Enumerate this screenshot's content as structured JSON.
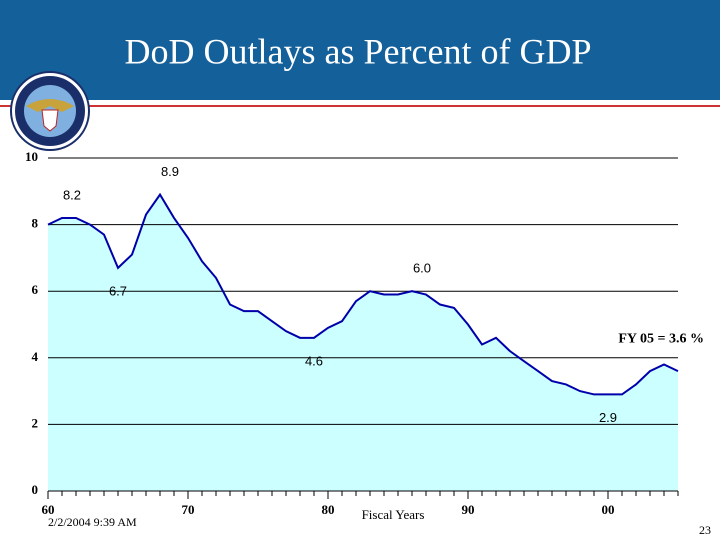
{
  "chart_data": {
    "type": "area",
    "title": "DoD Outlays as Percent of GDP",
    "x_label": "Fiscal Years",
    "annotation": "FY 05 = 3.6 %",
    "timestamp": "2/2/2004 9:39 AM",
    "page_number": "23",
    "x": [
      1960,
      1961,
      1962,
      1963,
      1964,
      1965,
      1966,
      1967,
      1968,
      1969,
      1970,
      1971,
      1972,
      1973,
      1974,
      1975,
      1976,
      1977,
      1978,
      1979,
      1980,
      1981,
      1982,
      1983,
      1984,
      1985,
      1986,
      1987,
      1988,
      1989,
      1990,
      1991,
      1992,
      1993,
      1994,
      1995,
      1996,
      1997,
      1998,
      1999,
      2000,
      2001,
      2002,
      2003,
      2004,
      2005
    ],
    "values": [
      8.0,
      8.2,
      8.2,
      8.0,
      7.7,
      6.7,
      7.1,
      8.3,
      8.9,
      8.2,
      7.6,
      6.9,
      6.4,
      5.6,
      5.4,
      5.4,
      5.1,
      4.8,
      4.6,
      4.6,
      4.9,
      5.1,
      5.7,
      6.0,
      5.9,
      5.9,
      6.0,
      5.9,
      5.6,
      5.5,
      5.0,
      4.4,
      4.6,
      4.2,
      3.9,
      3.6,
      3.3,
      3.2,
      3.0,
      2.9,
      2.9,
      2.9,
      3.2,
      3.6,
      3.8,
      3.6
    ],
    "value_labels": [
      null,
      "8.2",
      null,
      null,
      null,
      "6.7",
      null,
      null,
      "8.9",
      null,
      null,
      null,
      null,
      null,
      null,
      null,
      null,
      null,
      null,
      "4.6",
      null,
      null,
      null,
      null,
      null,
      null,
      "6.0",
      null,
      null,
      null,
      null,
      null,
      null,
      null,
      null,
      null,
      null,
      null,
      null,
      null,
      "2.9",
      null,
      null,
      null,
      null,
      null
    ],
    "line_color": "#0000aa",
    "fill_color": "#ccffff",
    "xlim": [
      1960,
      2005
    ],
    "xticks": [
      {
        "value": 1960,
        "label": "60"
      },
      {
        "value": 1970,
        "label": "70"
      },
      {
        "value": 1980,
        "label": "80"
      },
      {
        "value": 1990,
        "label": "90"
      },
      {
        "value": 2000,
        "label": "00"
      }
    ],
    "ylim": [
      0,
      10
    ],
    "yticks": [
      0,
      2,
      4,
      6,
      8,
      10
    ],
    "grid": true
  }
}
